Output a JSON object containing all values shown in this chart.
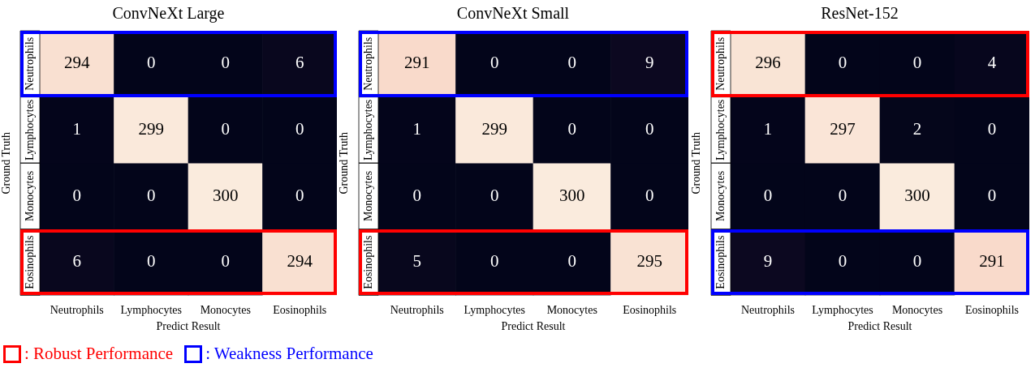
{
  "chart_data": [
    {
      "type": "heatmap",
      "title": "ConvNeXt Large",
      "xlabel": "Predict Result",
      "ylabel": "Ground Truth",
      "categories": [
        "Neutrophils",
        "Lymphocytes",
        "Monocytes",
        "Eosinophils"
      ],
      "y_categories": [
        "Neutrophils",
        "Lymphocytes",
        "Monocytes",
        "Eosinophils"
      ],
      "cells": [
        [
          294,
          0,
          0,
          6
        ],
        [
          1,
          299,
          0,
          0
        ],
        [
          0,
          0,
          300,
          0
        ],
        [
          6,
          0,
          0,
          294
        ]
      ],
      "data_labels": true,
      "annotations": [
        ": Robust Performance",
        ": Weakness Performance"
      ]
    },
    {
      "type": "heatmap",
      "title": "ConvNeXt Small",
      "xlabel": "Predict Result",
      "ylabel": "Ground Truth",
      "categories": [
        "Neutrophils",
        "Lymphocytes",
        "Monocytes",
        "Eosinophils"
      ],
      "y_categories": [
        "Neutrophils",
        "Lymphocytes",
        "Monocytes",
        "Eosinophils"
      ],
      "cells": [
        [
          291,
          0,
          0,
          9
        ],
        [
          1,
          299,
          0,
          0
        ],
        [
          0,
          0,
          300,
          0
        ],
        [
          5,
          0,
          0,
          295
        ]
      ],
      "data_labels": true
    },
    {
      "type": "heatmap",
      "title": "ResNet-152",
      "xlabel": "Predict Result",
      "ylabel": "Ground Truth",
      "categories": [
        "Neutrophils",
        "Lymphocytes",
        "Monocytes",
        "Eosinophils"
      ],
      "y_categories": [
        "Neutrophils",
        "Lymphocytes",
        "Monocytes",
        "Eosinophils"
      ],
      "cells": [
        [
          296,
          0,
          0,
          4
        ],
        [
          1,
          297,
          2,
          0
        ],
        [
          0,
          0,
          300,
          0
        ],
        [
          9,
          0,
          0,
          291
        ]
      ],
      "data_labels": true
    }
  ]
}
